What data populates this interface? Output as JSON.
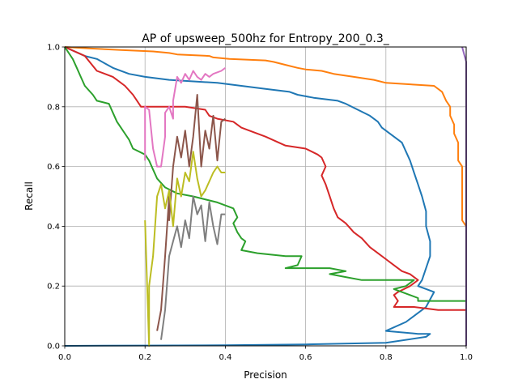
{
  "chart_data": {
    "type": "line",
    "title": "AP of upsweep_500hz for Entropy_200_0.3_",
    "xlabel": "Precision",
    "ylabel": "Recall",
    "xlim": [
      0,
      1
    ],
    "ylim": [
      0,
      1
    ],
    "grid": true,
    "x_ticks": [
      "0.0",
      "0.2",
      "0.4",
      "0.6",
      "0.8",
      "1.0"
    ],
    "y_ticks": [
      "0.0",
      "0.2",
      "0.4",
      "0.6",
      "0.8",
      "1.0"
    ],
    "series": [
      {
        "color": "#ff7f0e",
        "points": [
          [
            0.0,
            1.0
          ],
          [
            0.06,
            0.995
          ],
          [
            0.14,
            0.99
          ],
          [
            0.22,
            0.985
          ],
          [
            0.26,
            0.98
          ],
          [
            0.28,
            0.975
          ],
          [
            0.36,
            0.97
          ],
          [
            0.37,
            0.965
          ],
          [
            0.41,
            0.96
          ],
          [
            0.5,
            0.955
          ],
          [
            0.52,
            0.95
          ],
          [
            0.55,
            0.94
          ],
          [
            0.58,
            0.93
          ],
          [
            0.6,
            0.925
          ],
          [
            0.64,
            0.92
          ],
          [
            0.67,
            0.91
          ],
          [
            0.72,
            0.9
          ],
          [
            0.77,
            0.89
          ],
          [
            0.8,
            0.88
          ],
          [
            0.86,
            0.875
          ],
          [
            0.92,
            0.87
          ],
          [
            0.94,
            0.85
          ],
          [
            0.95,
            0.82
          ],
          [
            0.96,
            0.8
          ],
          [
            0.96,
            0.77
          ],
          [
            0.97,
            0.74
          ],
          [
            0.97,
            0.71
          ],
          [
            0.98,
            0.68
          ],
          [
            0.98,
            0.62
          ],
          [
            0.99,
            0.6
          ],
          [
            0.99,
            0.55
          ],
          [
            0.99,
            0.42
          ],
          [
            1.0,
            0.4
          ],
          [
            1.0,
            0.29
          ],
          [
            1.0,
            0.28
          ]
        ]
      },
      {
        "color": "#1f77b4",
        "points": [
          [
            0.0,
            1.0
          ],
          [
            0.05,
            0.97
          ],
          [
            0.08,
            0.96
          ],
          [
            0.12,
            0.93
          ],
          [
            0.16,
            0.91
          ],
          [
            0.2,
            0.9
          ],
          [
            0.26,
            0.89
          ],
          [
            0.38,
            0.88
          ],
          [
            0.5,
            0.86
          ],
          [
            0.56,
            0.85
          ],
          [
            0.58,
            0.84
          ],
          [
            0.62,
            0.83
          ],
          [
            0.68,
            0.82
          ],
          [
            0.7,
            0.81
          ],
          [
            0.73,
            0.79
          ],
          [
            0.76,
            0.77
          ],
          [
            0.78,
            0.75
          ],
          [
            0.79,
            0.73
          ],
          [
            0.8,
            0.72
          ],
          [
            0.82,
            0.7
          ],
          [
            0.84,
            0.68
          ],
          [
            0.85,
            0.65
          ],
          [
            0.86,
            0.62
          ],
          [
            0.87,
            0.58
          ],
          [
            0.88,
            0.54
          ],
          [
            0.89,
            0.5
          ],
          [
            0.9,
            0.45
          ],
          [
            0.9,
            0.4
          ],
          [
            0.91,
            0.35
          ],
          [
            0.91,
            0.3
          ],
          [
            0.9,
            0.26
          ],
          [
            0.89,
            0.22
          ],
          [
            0.88,
            0.2
          ],
          [
            0.92,
            0.18
          ],
          [
            0.9,
            0.13
          ],
          [
            0.85,
            0.08
          ],
          [
            0.8,
            0.05
          ],
          [
            0.88,
            0.04
          ],
          [
            0.91,
            0.04
          ],
          [
            0.9,
            0.03
          ],
          [
            0.8,
            0.01
          ],
          [
            0.6,
            0.005
          ],
          [
            0.4,
            0.002
          ],
          [
            0.2,
            0.001
          ],
          [
            0.0,
            0.0
          ]
        ]
      },
      {
        "color": "#d62728",
        "points": [
          [
            0.0,
            1.0
          ],
          [
            0.05,
            0.97
          ],
          [
            0.08,
            0.92
          ],
          [
            0.12,
            0.9
          ],
          [
            0.15,
            0.87
          ],
          [
            0.17,
            0.84
          ],
          [
            0.18,
            0.82
          ],
          [
            0.19,
            0.8
          ],
          [
            0.3,
            0.8
          ],
          [
            0.35,
            0.79
          ],
          [
            0.36,
            0.77
          ],
          [
            0.38,
            0.76
          ],
          [
            0.42,
            0.75
          ],
          [
            0.44,
            0.73
          ],
          [
            0.46,
            0.72
          ],
          [
            0.5,
            0.7
          ],
          [
            0.55,
            0.67
          ],
          [
            0.6,
            0.66
          ],
          [
            0.63,
            0.64
          ],
          [
            0.64,
            0.63
          ],
          [
            0.65,
            0.6
          ],
          [
            0.64,
            0.57
          ],
          [
            0.65,
            0.54
          ],
          [
            0.66,
            0.5
          ],
          [
            0.67,
            0.46
          ],
          [
            0.68,
            0.43
          ],
          [
            0.7,
            0.41
          ],
          [
            0.72,
            0.38
          ],
          [
            0.74,
            0.36
          ],
          [
            0.76,
            0.33
          ],
          [
            0.78,
            0.31
          ],
          [
            0.8,
            0.29
          ],
          [
            0.82,
            0.27
          ],
          [
            0.84,
            0.25
          ],
          [
            0.86,
            0.24
          ],
          [
            0.88,
            0.22
          ],
          [
            0.86,
            0.2
          ],
          [
            0.83,
            0.18
          ],
          [
            0.82,
            0.17
          ],
          [
            0.83,
            0.15
          ],
          [
            0.82,
            0.13
          ],
          [
            0.87,
            0.13
          ],
          [
            0.93,
            0.12
          ],
          [
            1.0,
            0.12
          ]
        ]
      },
      {
        "color": "#2ca02c",
        "points": [
          [
            0.0,
            1.0
          ],
          [
            0.02,
            0.96
          ],
          [
            0.03,
            0.93
          ],
          [
            0.04,
            0.9
          ],
          [
            0.05,
            0.87
          ],
          [
            0.07,
            0.84
          ],
          [
            0.08,
            0.82
          ],
          [
            0.11,
            0.81
          ],
          [
            0.12,
            0.78
          ],
          [
            0.13,
            0.75
          ],
          [
            0.14,
            0.73
          ],
          [
            0.15,
            0.71
          ],
          [
            0.16,
            0.69
          ],
          [
            0.17,
            0.66
          ],
          [
            0.2,
            0.64
          ],
          [
            0.21,
            0.62
          ],
          [
            0.22,
            0.59
          ],
          [
            0.23,
            0.56
          ],
          [
            0.25,
            0.53
          ],
          [
            0.28,
            0.51
          ],
          [
            0.32,
            0.5
          ],
          [
            0.38,
            0.48
          ],
          [
            0.42,
            0.46
          ],
          [
            0.43,
            0.43
          ],
          [
            0.42,
            0.41
          ],
          [
            0.43,
            0.38
          ],
          [
            0.44,
            0.36
          ],
          [
            0.45,
            0.35
          ],
          [
            0.44,
            0.32
          ],
          [
            0.48,
            0.31
          ],
          [
            0.55,
            0.3
          ],
          [
            0.59,
            0.3
          ],
          [
            0.58,
            0.27
          ],
          [
            0.55,
            0.26
          ],
          [
            0.66,
            0.26
          ],
          [
            0.7,
            0.25
          ],
          [
            0.66,
            0.24
          ],
          [
            0.7,
            0.23
          ],
          [
            0.74,
            0.22
          ],
          [
            0.8,
            0.22
          ],
          [
            0.87,
            0.22
          ],
          [
            0.85,
            0.2
          ],
          [
            0.82,
            0.19
          ],
          [
            0.88,
            0.16
          ],
          [
            0.88,
            0.15
          ],
          [
            0.94,
            0.15
          ],
          [
            1.0,
            0.15
          ]
        ]
      },
      {
        "color": "#e377c2",
        "points": [
          [
            0.2,
            0.62
          ],
          [
            0.2,
            0.8
          ],
          [
            0.21,
            0.79
          ],
          [
            0.22,
            0.66
          ],
          [
            0.23,
            0.6
          ],
          [
            0.24,
            0.6
          ],
          [
            0.25,
            0.7
          ],
          [
            0.25,
            0.78
          ],
          [
            0.26,
            0.8
          ],
          [
            0.27,
            0.76
          ],
          [
            0.27,
            0.82
          ],
          [
            0.28,
            0.9
          ],
          [
            0.29,
            0.88
          ],
          [
            0.3,
            0.91
          ],
          [
            0.31,
            0.89
          ],
          [
            0.32,
            0.92
          ],
          [
            0.33,
            0.9
          ],
          [
            0.34,
            0.89
          ],
          [
            0.35,
            0.91
          ],
          [
            0.36,
            0.9
          ],
          [
            0.37,
            0.91
          ],
          [
            0.39,
            0.92
          ],
          [
            0.4,
            0.93
          ]
        ]
      },
      {
        "color": "#8c564b",
        "points": [
          [
            0.23,
            0.05
          ],
          [
            0.24,
            0.12
          ],
          [
            0.25,
            0.3
          ],
          [
            0.26,
            0.5
          ],
          [
            0.26,
            0.42
          ],
          [
            0.27,
            0.6
          ],
          [
            0.28,
            0.7
          ],
          [
            0.29,
            0.63
          ],
          [
            0.3,
            0.72
          ],
          [
            0.31,
            0.6
          ],
          [
            0.32,
            0.7
          ],
          [
            0.33,
            0.84
          ],
          [
            0.34,
            0.6
          ],
          [
            0.35,
            0.72
          ],
          [
            0.36,
            0.66
          ],
          [
            0.37,
            0.77
          ],
          [
            0.38,
            0.62
          ],
          [
            0.39,
            0.75
          ],
          [
            0.4,
            0.76
          ]
        ]
      },
      {
        "color": "#7f7f7f",
        "points": [
          [
            0.24,
            0.02
          ],
          [
            0.25,
            0.12
          ],
          [
            0.26,
            0.3
          ],
          [
            0.27,
            0.35
          ],
          [
            0.28,
            0.4
          ],
          [
            0.29,
            0.33
          ],
          [
            0.3,
            0.42
          ],
          [
            0.31,
            0.36
          ],
          [
            0.32,
            0.5
          ],
          [
            0.33,
            0.44
          ],
          [
            0.34,
            0.47
          ],
          [
            0.35,
            0.35
          ],
          [
            0.36,
            0.48
          ],
          [
            0.37,
            0.4
          ],
          [
            0.38,
            0.34
          ],
          [
            0.39,
            0.44
          ],
          [
            0.4,
            0.44
          ]
        ]
      },
      {
        "color": "#bcbd22",
        "points": [
          [
            0.2,
            0.42
          ],
          [
            0.21,
            0.0
          ],
          [
            0.21,
            0.2
          ],
          [
            0.22,
            0.3
          ],
          [
            0.23,
            0.5
          ],
          [
            0.24,
            0.54
          ],
          [
            0.25,
            0.46
          ],
          [
            0.26,
            0.52
          ],
          [
            0.27,
            0.4
          ],
          [
            0.28,
            0.56
          ],
          [
            0.29,
            0.5
          ],
          [
            0.3,
            0.58
          ],
          [
            0.31,
            0.55
          ],
          [
            0.32,
            0.65
          ],
          [
            0.33,
            0.56
          ],
          [
            0.34,
            0.5
          ],
          [
            0.35,
            0.52
          ],
          [
            0.36,
            0.55
          ],
          [
            0.37,
            0.58
          ],
          [
            0.38,
            0.6
          ],
          [
            0.39,
            0.58
          ],
          [
            0.4,
            0.58
          ]
        ]
      },
      {
        "color": "#9467bd",
        "points": [
          [
            0.99,
            1.0
          ],
          [
            1.0,
            0.95
          ],
          [
            1.0,
            0.5
          ],
          [
            1.0,
            0.0
          ]
        ]
      }
    ]
  }
}
